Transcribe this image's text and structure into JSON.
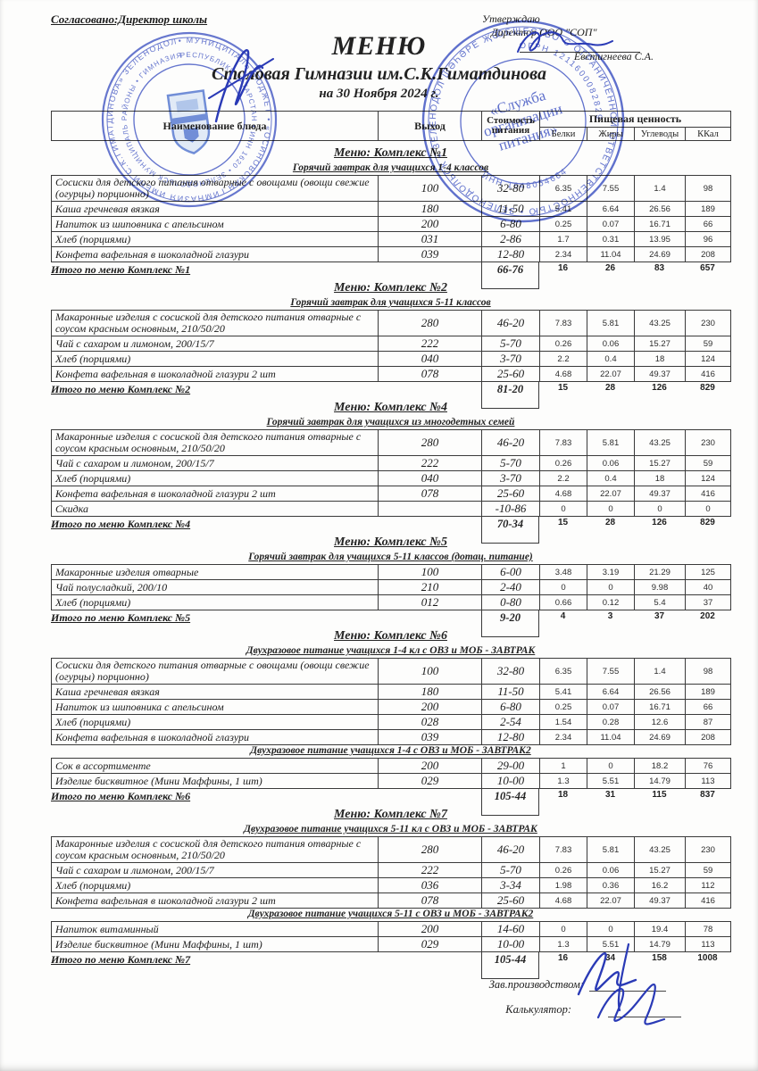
{
  "header": {
    "agreed": "Согласовано:Директор школы",
    "approve": {
      "line1": "Утверждаю",
      "line2": "Директор ООО \"СОП\"",
      "name": "Евстигнеева С.А."
    },
    "title": "МЕНЮ",
    "subtitle": "Столовая Гимназии им.С.К.Гиматдинова",
    "date_line": "на 30 Ноября 2024 г."
  },
  "table_header": {
    "name": "Наименование блюда",
    "out": "Выход",
    "cost": "Стоимость питания",
    "nutrition": "Пищевая ценность",
    "sub": [
      "Белки",
      "Жиры",
      "Углеводы",
      "ККал"
    ]
  },
  "complexes": [
    {
      "title": "Меню: Комплекс №1",
      "sections": [
        {
          "subtitle": "Горячий завтрак для учащихся 1-4 классов",
          "rows": [
            {
              "name": "Сосиски для детского питания отварные с овощами (овощи свежие (огурцы) порционно)",
              "out": "100",
              "cost": "32-80",
              "protein": "6.35",
              "fat": "7.55",
              "carbs": "1.4",
              "kcal": "98"
            },
            {
              "name": "Каша гречневая вязкая",
              "out": "180",
              "cost": "11-50",
              "protein": "5.41",
              "fat": "6.64",
              "carbs": "26.56",
              "kcal": "189"
            },
            {
              "name": "Напиток из шиповника с апельсином",
              "out": "200",
              "cost": "6-80",
              "protein": "0.25",
              "fat": "0.07",
              "carbs": "16.71",
              "kcal": "66"
            },
            {
              "name": "Хлеб (порциями)",
              "out": "031",
              "cost": "2-86",
              "protein": "1.7",
              "fat": "0.31",
              "carbs": "13.95",
              "kcal": "96"
            },
            {
              "name": "Конфета вафельная в шоколадной глазури",
              "out": "039",
              "cost": "12-80",
              "protein": "2.34",
              "fat": "11.04",
              "carbs": "24.69",
              "kcal": "208"
            }
          ]
        }
      ],
      "total": {
        "label": "Итого по меню Комплекс №1",
        "cost": "66-76",
        "protein": "16",
        "fat": "26",
        "carbs": "83",
        "kcal": "657"
      }
    },
    {
      "title": "Меню: Комплекс №2",
      "sections": [
        {
          "subtitle": "Горячий завтрак для учащихся 5-11 классов",
          "rows": [
            {
              "name": "Макаронные изделия с сосиской для детского питания отварные с соусом красным основным, 210/50/20",
              "out": "280",
              "cost": "46-20",
              "protein": "7.83",
              "fat": "5.81",
              "carbs": "43.25",
              "kcal": "230"
            },
            {
              "name": "Чай с сахаром и лимоном, 200/15/7",
              "out": "222",
              "cost": "5-70",
              "protein": "0.26",
              "fat": "0.06",
              "carbs": "15.27",
              "kcal": "59"
            },
            {
              "name": "Хлеб (порциями)",
              "out": "040",
              "cost": "3-70",
              "protein": "2.2",
              "fat": "0.4",
              "carbs": "18",
              "kcal": "124"
            },
            {
              "name": "Конфета вафельная в шоколадной глазури 2 шт",
              "out": "078",
              "cost": "25-60",
              "protein": "4.68",
              "fat": "22.07",
              "carbs": "49.37",
              "kcal": "416"
            }
          ]
        }
      ],
      "total": {
        "label": "Итого по меню Комплекс №2",
        "cost": "81-20",
        "protein": "15",
        "fat": "28",
        "carbs": "126",
        "kcal": "829"
      }
    },
    {
      "title": "Меню: Комплекс №4",
      "sections": [
        {
          "subtitle": "Горячий завтрак для учащихся из многодетных семей",
          "rows": [
            {
              "name": "Макаронные изделия с сосиской для детского питания отварные с соусом красным основным, 210/50/20",
              "out": "280",
              "cost": "46-20",
              "protein": "7.83",
              "fat": "5.81",
              "carbs": "43.25",
              "kcal": "230"
            },
            {
              "name": "Чай с сахаром и лимоном, 200/15/7",
              "out": "222",
              "cost": "5-70",
              "protein": "0.26",
              "fat": "0.06",
              "carbs": "15.27",
              "kcal": "59"
            },
            {
              "name": "Хлеб (порциями)",
              "out": "040",
              "cost": "3-70",
              "protein": "2.2",
              "fat": "0.4",
              "carbs": "18",
              "kcal": "124"
            },
            {
              "name": "Конфета вафельная в шоколадной глазури 2 шт",
              "out": "078",
              "cost": "25-60",
              "protein": "4.68",
              "fat": "22.07",
              "carbs": "49.37",
              "kcal": "416"
            },
            {
              "name": "Скидка",
              "out": "",
              "cost": "-10-86",
              "protein": "0",
              "fat": "0",
              "carbs": "0",
              "kcal": "0"
            }
          ]
        }
      ],
      "total": {
        "label": "Итого по меню Комплекс №4",
        "cost": "70-34",
        "protein": "15",
        "fat": "28",
        "carbs": "126",
        "kcal": "829"
      }
    },
    {
      "title": "Меню: Комплекс №5",
      "sections": [
        {
          "subtitle": "Горячий завтрак для учащихся 5-11 классов (дотац. питание)",
          "rows": [
            {
              "name": "Макаронные изделия отварные",
              "out": "100",
              "cost": "6-00",
              "protein": "3.48",
              "fat": "3.19",
              "carbs": "21.29",
              "kcal": "125"
            },
            {
              "name": "Чай полусладкий, 200/10",
              "out": "210",
              "cost": "2-40",
              "protein": "0",
              "fat": "0",
              "carbs": "9.98",
              "kcal": "40"
            },
            {
              "name": "Хлеб (порциями)",
              "out": "012",
              "cost": "0-80",
              "protein": "0.66",
              "fat": "0.12",
              "carbs": "5.4",
              "kcal": "37"
            }
          ]
        }
      ],
      "total": {
        "label": "Итого по меню Комплекс №5",
        "cost": "9-20",
        "protein": "4",
        "fat": "3",
        "carbs": "37",
        "kcal": "202"
      }
    },
    {
      "title": "Меню: Комплекс №6",
      "sections": [
        {
          "subtitle": "Двухразовое питание учащихся 1-4 кл с ОВЗ и МОБ - ЗАВТРАК",
          "rows": [
            {
              "name": "Сосиски для детского питания отварные с овощами (овощи свежие (огурцы) порционно)",
              "out": "100",
              "cost": "32-80",
              "protein": "6.35",
              "fat": "7.55",
              "carbs": "1.4",
              "kcal": "98"
            },
            {
              "name": "Каша гречневая вязкая",
              "out": "180",
              "cost": "11-50",
              "protein": "5.41",
              "fat": "6.64",
              "carbs": "26.56",
              "kcal": "189"
            },
            {
              "name": "Напиток из шиповника с апельсином",
              "out": "200",
              "cost": "6-80",
              "protein": "0.25",
              "fat": "0.07",
              "carbs": "16.71",
              "kcal": "66"
            },
            {
              "name": "Хлеб (порциями)",
              "out": "028",
              "cost": "2-54",
              "protein": "1.54",
              "fat": "0.28",
              "carbs": "12.6",
              "kcal": "87"
            },
            {
              "name": "Конфета вафельная в шоколадной глазури",
              "out": "039",
              "cost": "12-80",
              "protein": "2.34",
              "fat": "11.04",
              "carbs": "24.69",
              "kcal": "208"
            }
          ]
        },
        {
          "subtitle": "Двухразовое питание учащихся 1-4 с ОВЗ и МОБ - ЗАВТРАК2",
          "rows": [
            {
              "name": "Сок в ассортименте",
              "out": "200",
              "cost": "29-00",
              "protein": "1",
              "fat": "0",
              "carbs": "18.2",
              "kcal": "76"
            },
            {
              "name": "Изделие бисквитное (Мини Маффины, 1 шт)",
              "out": "029",
              "cost": "10-00",
              "protein": "1.3",
              "fat": "5.51",
              "carbs": "14.79",
              "kcal": "113"
            }
          ]
        }
      ],
      "total": {
        "label": "Итого по меню Комплекс №6",
        "cost": "105-44",
        "protein": "18",
        "fat": "31",
        "carbs": "115",
        "kcal": "837"
      }
    },
    {
      "title": "Меню: Комплекс №7",
      "sections": [
        {
          "subtitle": "Двухразовое питание учащихся 5-11 кл с  ОВЗ и МОБ - ЗАВТРАК",
          "rows": [
            {
              "name": "Макаронные изделия с сосиской для детского питания отварные с соусом красным основным, 210/50/20",
              "out": "280",
              "cost": "46-20",
              "protein": "7.83",
              "fat": "5.81",
              "carbs": "43.25",
              "kcal": "230"
            },
            {
              "name": "Чай с сахаром и лимоном, 200/15/7",
              "out": "222",
              "cost": "5-70",
              "protein": "0.26",
              "fat": "0.06",
              "carbs": "15.27",
              "kcal": "59"
            },
            {
              "name": "Хлеб (порциями)",
              "out": "036",
              "cost": "3-34",
              "protein": "1.98",
              "fat": "0.36",
              "carbs": "16.2",
              "kcal": "112"
            },
            {
              "name": "Конфета вафельная в шоколадной глазури 2 шт",
              "out": "078",
              "cost": "25-60",
              "protein": "4.68",
              "fat": "22.07",
              "carbs": "49.37",
              "kcal": "416"
            }
          ]
        },
        {
          "subtitle": "Двухразовое питание учащихся 5-11 с ОВЗ и МОБ - ЗАВТРАК2",
          "rows": [
            {
              "name": "Напиток витаминный",
              "out": "200",
              "cost": "14-60",
              "protein": "0",
              "fat": "0",
              "carbs": "19.4",
              "kcal": "78"
            },
            {
              "name": "Изделие бисквитное (Мини Маффины, 1 шт)",
              "out": "029",
              "cost": "10-00",
              "protein": "1.3",
              "fat": "5.51",
              "carbs": "14.79",
              "kcal": "113"
            }
          ]
        }
      ],
      "total": {
        "label": "Итого по меню Комплекс №7",
        "cost": "105-44",
        "protein": "16",
        "fat": "34",
        "carbs": "158",
        "kcal": "1008"
      }
    }
  ],
  "footer": {
    "prod_label": "Зав.производством:",
    "calc_label": "Калькулятор:"
  },
  "stamps": {
    "color": "#3d52c4",
    "left": {
      "outer_ring": "• МУНИЦИПАЛЬ БЮДЖЕТ • «ОСИНОВСКАЯ ГИМНАЗИЯ ИМЕНИ С.К.ГИМАТДИНОВА» ЗЕЛЕНОДОЛЬСКОГО МУНИЦИПАЛЬНОГО РАЙОНА",
      "inner_ring": "РЕСПУБЛИКИ ТАТАРСТАН • ИНН 1620 • ЗЕЛЕНОДОЛЬСК МУНИЦИПАЛЬ РАЙОНЫ • ГИМНАЗИЯСЕ - МУНИЦИПАЛЬ УЧРЕЖДЕНИЕСЕ"
    },
    "right": {
      "outer_ring": "ОБЩЕСТВО С ОГРАНИЧЕННОЙ ОТВЕТСТВЕННОСТЬЮ • ЗЕЛЕНОДОЛЬСК • ЗЕЛЕНОДОЛ ШӘҺӘРЕ ҖӘМГЫЯТЕ •",
      "ogrn": "ОГРН 1211600082829",
      "inn": "ИНН 1648054664",
      "center_l1": "«Служба",
      "center_l2": "организации",
      "center_l3": "питания»"
    }
  }
}
